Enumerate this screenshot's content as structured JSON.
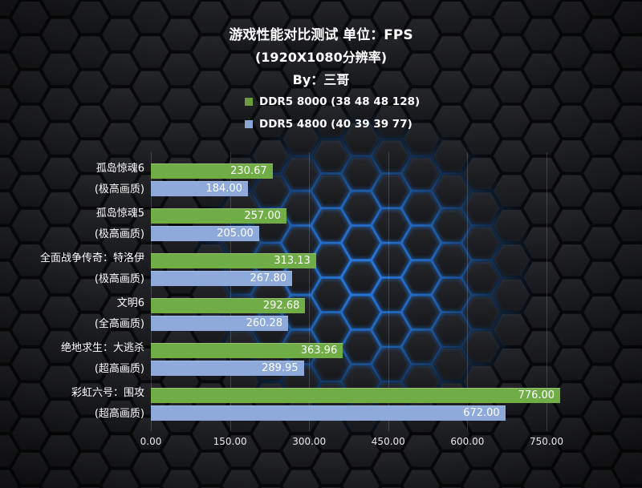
{
  "title": {
    "line1": "游戏性能对比测试 单位：FPS",
    "line2": "(1920X1080分辨率)",
    "line3": "By：三哥"
  },
  "colors": {
    "bar_green": "#70AD47",
    "bar_blue": "#8EAADB",
    "legend_green": "#6B9C3E",
    "legend_blue": "#8AA6D2",
    "text": "#FFFFFF",
    "glow_blue": "#2E8BFF",
    "background": "#0B0C0E"
  },
  "chart_data": {
    "type": "bar",
    "orientation": "horizontal-grouped",
    "title": "游戏性能对比测试 单位：FPS",
    "subtitle": "(1920X1080分辨率)",
    "byline": "By：三哥",
    "unit": "FPS",
    "legend_position": "top",
    "categories": [
      "孤岛惊魂6",
      "孤岛惊魂5",
      "全面战争传奇：特洛伊",
      "文明6",
      "绝地求生：大逃杀",
      "彩虹六号：围攻"
    ],
    "category_sublabels": [
      "(极高画质)",
      "(极高画质)",
      "(极高画质)",
      "(全高画质)",
      "(超高画质)",
      "(超高画质)"
    ],
    "series": [
      {
        "name": "DDR5 8000 (38 48 48 128)",
        "color": "#70AD47",
        "values": [
          230.67,
          257.0,
          313.13,
          292.68,
          363.96,
          776.0
        ]
      },
      {
        "name": "DDR5 4800 (40 39 39 77)",
        "color": "#8EAADB",
        "values": [
          184.0,
          205.0,
          267.8,
          260.28,
          289.95,
          672.0
        ]
      }
    ],
    "x_axis": {
      "ticks": [
        0,
        150,
        300,
        450,
        600,
        750
      ],
      "tick_labels": [
        "0.00",
        "150.00",
        "300.00",
        "450.00",
        "600.00",
        "750.00"
      ],
      "max": 750,
      "grid": true
    },
    "value_label_decimals": 2
  }
}
